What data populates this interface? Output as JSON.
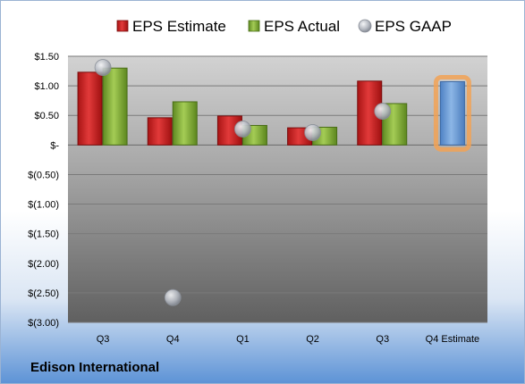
{
  "company": "Edison International",
  "chart_data": {
    "type": "bar",
    "categories": [
      "Q3",
      "Q4",
      "Q1",
      "Q2",
      "Q3",
      "Q4 Estimate"
    ],
    "series": [
      {
        "name": "EPS Estimate",
        "values": [
          1.23,
          0.46,
          0.49,
          0.29,
          1.08,
          null
        ]
      },
      {
        "name": "EPS Actual",
        "values": [
          1.3,
          0.73,
          0.33,
          0.3,
          0.7,
          null
        ]
      },
      {
        "name": "EPS GAAP",
        "type": "scatter",
        "values": [
          1.31,
          -2.58,
          0.27,
          0.21,
          0.57,
          null
        ]
      }
    ],
    "forecast": {
      "category": "Q4 Estimate",
      "value": 1.07
    },
    "yticks": [
      1.5,
      1.0,
      0.5,
      0,
      -0.5,
      -1.0,
      -1.5,
      -2.0,
      -2.5,
      -3.0
    ],
    "ytick_labels": [
      "$1.50",
      "$1.00",
      "$0.50",
      "$-",
      "$(0.50)",
      "$(1.00)",
      "$(1.50)",
      "$(2.00)",
      "$(2.50)",
      "$(3.00)"
    ],
    "ylim": [
      -3.0,
      1.5
    ],
    "grid": true,
    "legend_position": "top",
    "colors": {
      "estimate": "#cc1f1f",
      "actual": "#86b33a",
      "gaap": "#b8bcc4",
      "forecast": "#6e9fd8",
      "forecast_glow": "#f2a255"
    }
  }
}
